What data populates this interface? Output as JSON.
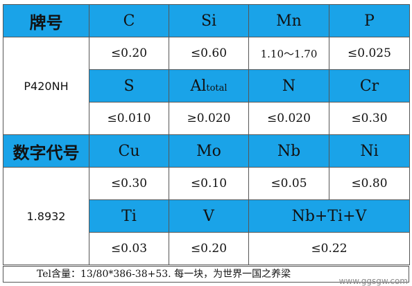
{
  "table": {
    "row1": {
      "label": "牌号",
      "cols": [
        "C",
        "Si",
        "Mn",
        "P"
      ]
    },
    "row2": {
      "values": [
        "≤0.20",
        "≤0.60",
        "1.10～1.70",
        "≤0.025"
      ]
    },
    "grade1": "P420NH",
    "row3": {
      "cols": [
        "S",
        "Cr"
      ],
      "al_main": "Al",
      "al_sub": "total",
      "n": "N"
    },
    "row4": {
      "values": [
        "≤0.010",
        "≥0.020",
        "≤0.020",
        "≤0.30"
      ]
    },
    "row5": {
      "label": "数字代号",
      "cols": [
        "Cu",
        "Mo",
        "Nb",
        "Ni"
      ]
    },
    "row6": {
      "values": [
        "≤0.30",
        "≤0.10",
        "≤0.05",
        "≤0.80"
      ]
    },
    "grade2": "1.8932",
    "row7": {
      "cols": [
        "Ti",
        "V",
        "Nb+Ti+V"
      ]
    },
    "row8": {
      "values": [
        "≤0.03",
        "≤0.20",
        "≤0.22"
      ]
    }
  },
  "footer": {
    "text": "Tel含量：13/80*386-38+53. 每一块，为世界一国之养梁"
  },
  "watermark": "www.ggsgw.com"
}
